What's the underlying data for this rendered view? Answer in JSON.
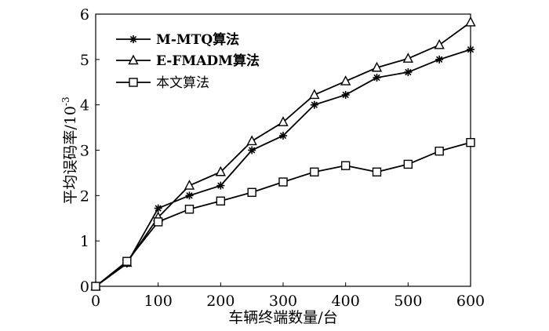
{
  "chart_data": {
    "type": "line",
    "title": "",
    "xlabel": "车辆终端数量/台",
    "ylabel_main": "平均误码率/10",
    "ylabel_exp": "-3",
    "xlim": [
      0,
      600
    ],
    "ylim": [
      0,
      6
    ],
    "x": [
      0,
      50,
      100,
      150,
      200,
      250,
      300,
      350,
      400,
      450,
      500,
      550,
      600
    ],
    "x_ticks": [
      0,
      100,
      200,
      300,
      400,
      500,
      600
    ],
    "y_ticks": [
      0,
      1,
      2,
      3,
      4,
      5,
      6
    ],
    "legend_position": "top-left",
    "series": [
      {
        "name": "M-MTQ算法",
        "marker": "star",
        "values": [
          0,
          0.5,
          1.72,
          2.0,
          2.22,
          3.0,
          3.32,
          4.0,
          4.22,
          4.6,
          4.72,
          5.0,
          5.22
        ]
      },
      {
        "name": "E-FMADM算法",
        "marker": "triangle",
        "values": [
          0,
          0.52,
          1.52,
          2.22,
          2.52,
          3.2,
          3.62,
          4.22,
          4.52,
          4.82,
          5.02,
          5.32,
          5.82
        ]
      },
      {
        "name": "本文算法",
        "marker": "square",
        "values": [
          0,
          0.55,
          1.42,
          1.7,
          1.88,
          2.07,
          2.3,
          2.52,
          2.66,
          2.52,
          2.69,
          2.98,
          3.17
        ]
      }
    ]
  }
}
